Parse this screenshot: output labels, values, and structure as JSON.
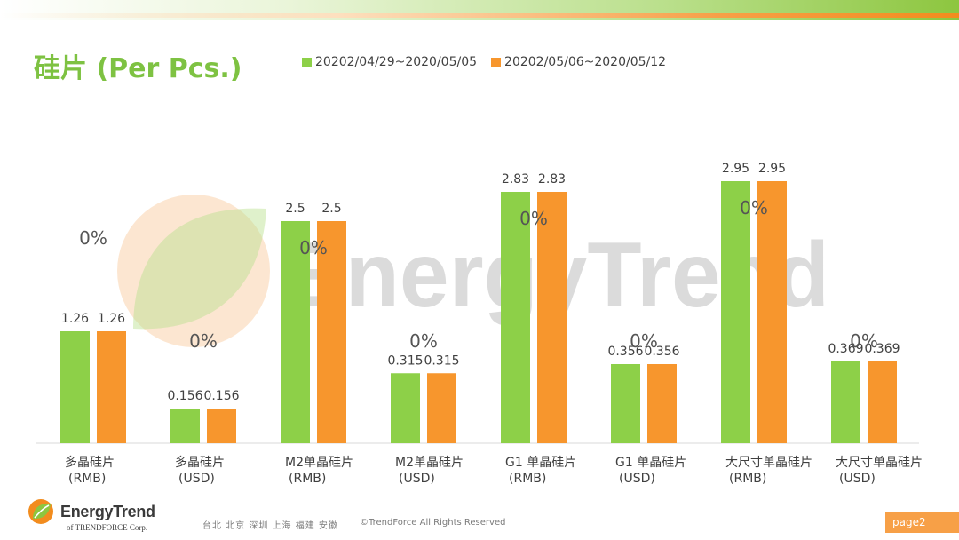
{
  "header": {
    "title": "硅片 (Per Pcs.)"
  },
  "watermark": {
    "text": "EnergyTrend"
  },
  "colors": {
    "green": "#8dd048",
    "orange": "#f7962d",
    "title": "#7ec242"
  },
  "chart_data": {
    "type": "bar",
    "title": "硅片 (Per Pcs.)",
    "legend_position": "top",
    "grid": false,
    "categories": [
      [
        "多晶硅片",
        "(RMB)"
      ],
      [
        "多晶硅片",
        "(USD)"
      ],
      [
        "M2单晶硅片",
        "(RMB)"
      ],
      [
        "M2单晶硅片",
        "(USD)"
      ],
      [
        "G1 单晶硅片",
        "(RMB)"
      ],
      [
        "G1 单晶硅片",
        "(USD)"
      ],
      [
        "大尺寸单晶硅片",
        "(RMB)"
      ],
      [
        "大尺寸单晶硅片",
        "(USD)"
      ]
    ],
    "series": [
      {
        "name": "20202/04/29~2020/05/05",
        "color": "#8dd048",
        "values": [
          1.26,
          0.156,
          2.5,
          0.315,
          2.83,
          0.356,
          2.95,
          0.369
        ]
      },
      {
        "name": "20202/05/06~2020/05/12",
        "color": "#f7962d",
        "values": [
          1.26,
          0.156,
          2.5,
          0.315,
          2.83,
          0.356,
          2.95,
          0.369
        ]
      }
    ],
    "value_labels": [
      [
        "1.26",
        "1.26"
      ],
      [
        "0.156",
        "0.156"
      ],
      [
        "2.5",
        "2.5"
      ],
      [
        "0.315",
        "0.315"
      ],
      [
        "2.83",
        "2.83"
      ],
      [
        "0.356",
        "0.356"
      ],
      [
        "2.95",
        "2.95"
      ],
      [
        "0.369",
        "0.369"
      ]
    ],
    "change_labels": [
      "0%",
      "0%",
      "0%",
      "0%",
      "0%",
      "0%",
      "0%",
      "0%"
    ],
    "change_values": [
      0,
      0,
      0,
      0,
      0,
      0,
      0,
      0
    ],
    "rmb_scale_max": 3.4,
    "usd_scale_max": 1.0
  },
  "footer": {
    "logo_text": "EnergyTrend",
    "logo_sub": "of TRENDFORCE Corp.",
    "cities": "台北 北京 深圳 上海 福建 安徽",
    "copyright": "©TrendForce All Rights Reserved",
    "page": "page2"
  }
}
